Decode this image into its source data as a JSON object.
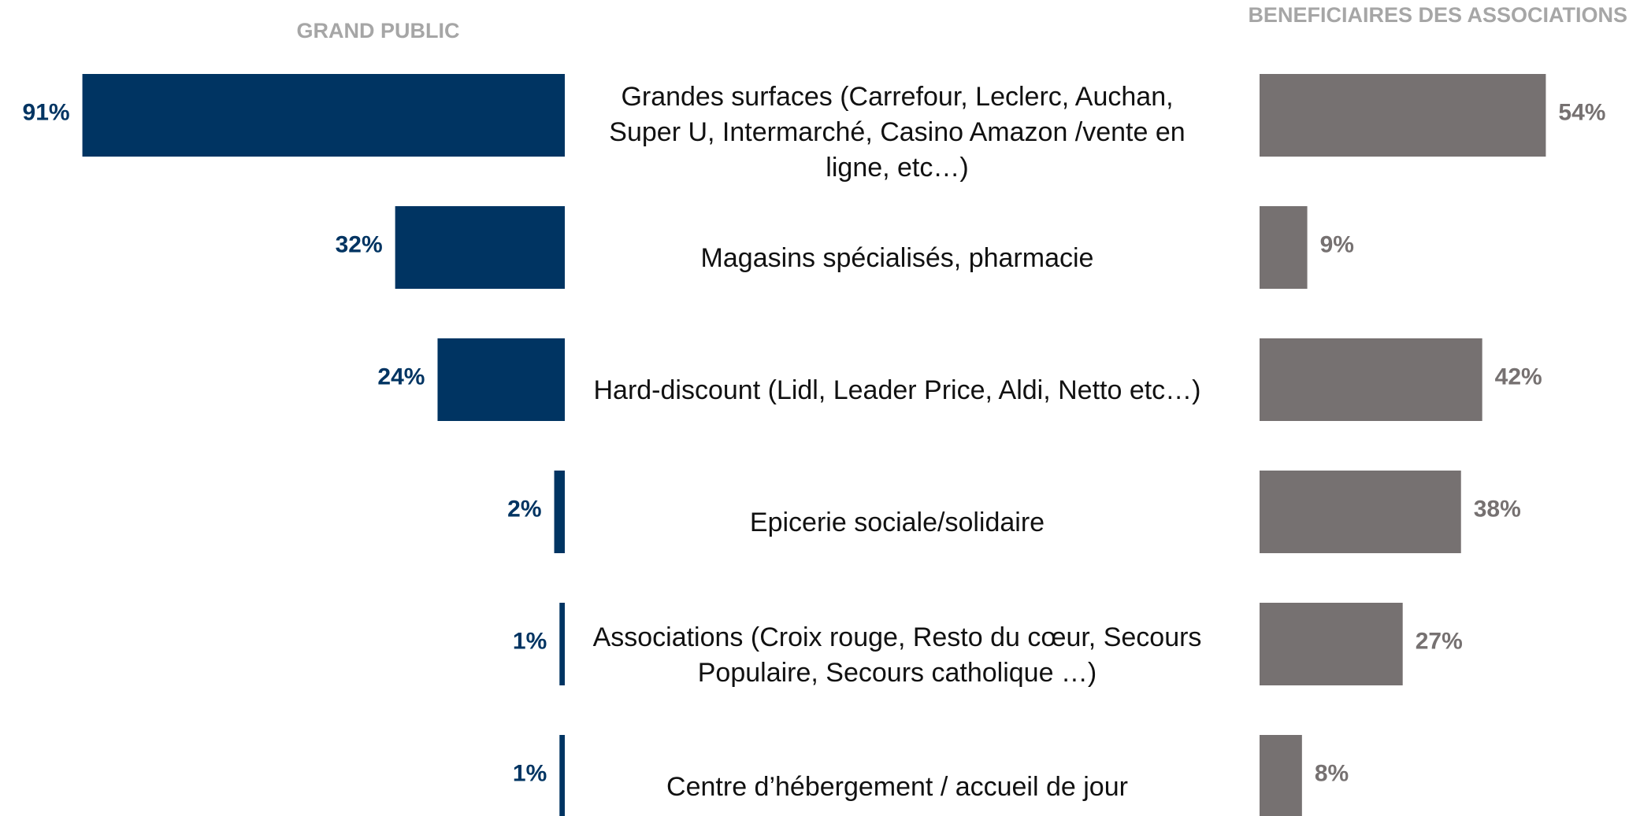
{
  "chart_data": {
    "type": "butterfly_bar",
    "categories": [
      "Grandes surfaces (Carrefour, Leclerc, Auchan, Super U, Intermarché, Casino Amazon /vente en ligne, etc…)",
      "Magasins spécialisés, pharmacie",
      "Hard-discount (Lidl, Leader Price, Aldi, Netto etc…)",
      "Epicerie sociale/solidaire",
      "Associations (Croix rouge, Resto du cœur, Secours Populaire, Secours catholique …)",
      "Centre d’hébergement / accueil de jour"
    ],
    "series": [
      {
        "name": "GRAND PUBLIC",
        "color": "#003462",
        "values": [
          91,
          32,
          24,
          2,
          1,
          1
        ],
        "value_labels": [
          "91%",
          "32%",
          "24%",
          "2%",
          "1%",
          "1%"
        ]
      },
      {
        "name": "BENEFICIAIRES DES ASSOCIATIONS",
        "color": "#767171",
        "values": [
          54,
          9,
          42,
          38,
          27,
          8
        ],
        "value_labels": [
          "54%",
          "9%",
          "42%",
          "38%",
          "27%",
          "8%"
        ]
      }
    ]
  }
}
